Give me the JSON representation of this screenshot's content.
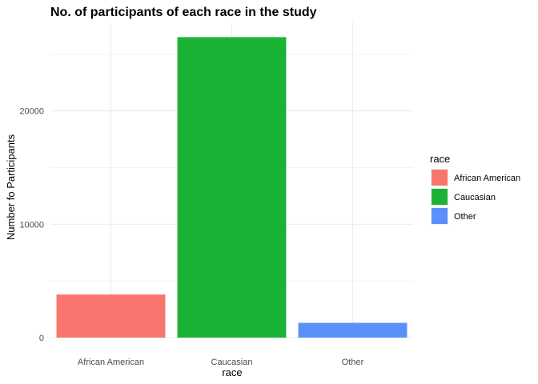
{
  "chart_data": {
    "type": "bar",
    "title": "No. of participants of each race in the study",
    "xlabel": "race",
    "ylabel": "Number fo Participants",
    "categories": [
      "African American",
      "Caucasian",
      "Other"
    ],
    "values": [
      3800,
      26500,
      1300
    ],
    "colors": [
      "#F8766D",
      "#1BB335",
      "#5B8FF9"
    ],
    "ylim": [
      0,
      27800
    ],
    "yticks": [
      0,
      10000,
      20000
    ],
    "ytick_labels": [
      "0",
      "10000",
      "20000"
    ],
    "grid": true,
    "legend": {
      "title": "race",
      "position": "right",
      "entries": [
        "African American",
        "Caucasian",
        "Other"
      ]
    }
  }
}
